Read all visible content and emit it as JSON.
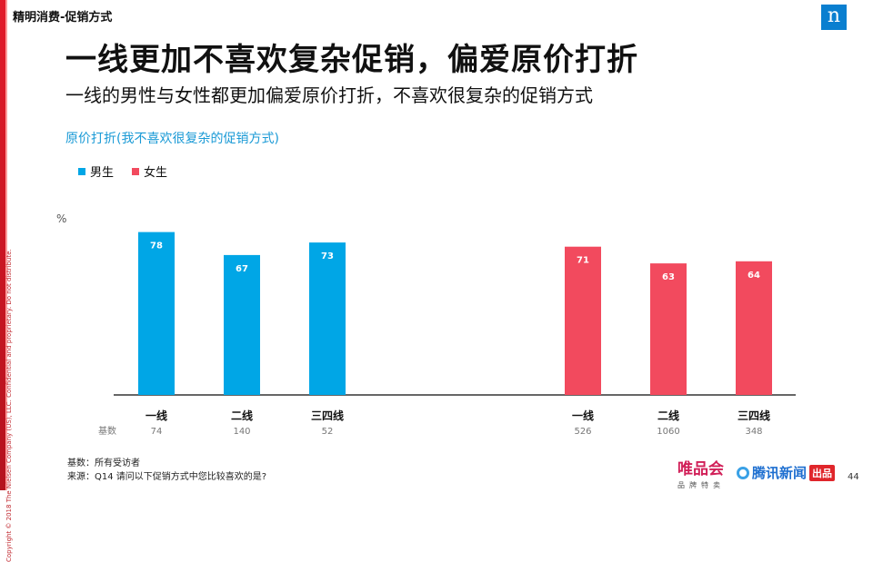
{
  "header": {
    "section": "精明消费-促销方式",
    "logo": "n",
    "title": "一线更加不喜欢复杂促销，偏爱原价打折",
    "subtitle": "一线的男性与女性都更加偏爱原价打折，不喜欢很复杂的促销方式"
  },
  "copyright": "Copyright © 2018 The Nielsen Company (US), LLC. Confidential and proprietary. Do not distribute.",
  "chart_data": {
    "type": "bar",
    "title": "原价打折(我不喜欢很复杂的促销方式)",
    "unit": "%",
    "ylim": [
      0,
      100
    ],
    "grid": false,
    "legend_position": "top-left",
    "base_label": "基数",
    "series": [
      {
        "name": "男生",
        "color": "#00a6e6",
        "categories": [
          "一线",
          "二线",
          "三四线"
        ],
        "values": [
          78,
          67,
          73
        ],
        "base": [
          "74",
          "140",
          "52"
        ]
      },
      {
        "name": "女生",
        "color": "#f24a5e",
        "categories": [
          "一线",
          "二线",
          "三四线"
        ],
        "values": [
          71,
          63,
          64
        ],
        "base": [
          "526",
          "1060",
          "348"
        ]
      }
    ]
  },
  "notes": {
    "base": "基数：所有受访者",
    "source": "来源：Q14 请问以下促销方式中您比较喜欢的是?"
  },
  "footer": {
    "brand1": "唯品会",
    "brand1_sub": "品牌特卖",
    "brand2": "腾讯新闻",
    "brand2_tag": "出品",
    "page": "44"
  }
}
